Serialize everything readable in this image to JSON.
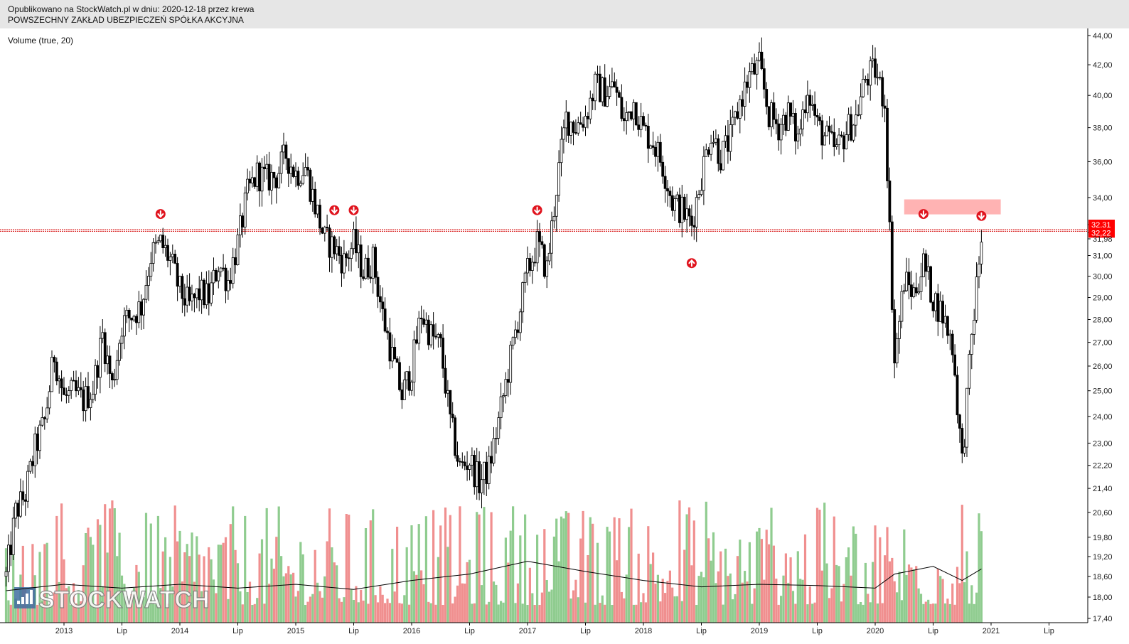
{
  "header": {
    "published": "Opublikowano na StockWatch.pl w dniu: 2020-12-18 przez krewa",
    "company": "POWSZECHNY ZAKŁAD UBEZPIECZEŃ SPÓŁKA AKCYJNA"
  },
  "indicator_label": "Volume (true, 20)",
  "watermark": "STOCKWATCH",
  "colors": {
    "up_volume": "#8fcc8f",
    "down_volume": "#f08f8f",
    "candle": "#000000",
    "resistance_line": "#d40000",
    "zone": "#ffb3b3",
    "marker": "#e0141e",
    "price_tag": "#ff0000"
  },
  "chart_data": {
    "type": "candlestick",
    "title": "",
    "ylabel": "",
    "y_axis": {
      "scale": "log",
      "range": [
        17.4,
        44.0
      ],
      "ticks": [
        "44,00",
        "42,00",
        "40,00",
        "38,00",
        "36,00",
        "34,00",
        "32,31",
        "32,22",
        "31,98",
        "31,00",
        "30,00",
        "29,00",
        "28,00",
        "27,00",
        "26,00",
        "25,00",
        "24,00",
        "23,00",
        "22,20",
        "21,40",
        "20,60",
        "19,80",
        "19,20",
        "18,60",
        "18,00",
        "17,40"
      ]
    },
    "x_axis": {
      "ticks": [
        "2013",
        "Lip",
        "2014",
        "Lip",
        "2015",
        "Lip",
        "2016",
        "Lip",
        "2017",
        "Lip",
        "2018",
        "Lip",
        "2019",
        "Lip",
        "2020",
        "Lip",
        "2021",
        "Lip"
      ]
    },
    "price_labels": [
      {
        "value": 32.31,
        "text": "32,31",
        "highlight": true
      },
      {
        "value": 32.22,
        "text": "32,22",
        "highlight": true
      },
      {
        "value": 31.98,
        "text": "31,98",
        "highlight": false
      }
    ],
    "resistance_levels": [
      32.31,
      32.22
    ],
    "zone": {
      "from_date": "2020-04",
      "to_date": "2021-02",
      "low": 33.1,
      "high": 33.9
    },
    "markers": [
      {
        "date": "2013-11",
        "price": 32.6,
        "direction": "down"
      },
      {
        "date": "2015-05",
        "price": 32.8,
        "direction": "down"
      },
      {
        "date": "2015-07",
        "price": 32.8,
        "direction": "down"
      },
      {
        "date": "2017-02",
        "price": 32.8,
        "direction": "down"
      },
      {
        "date": "2018-06",
        "price": 31.4,
        "direction": "up"
      },
      {
        "date": "2020-06",
        "price": 32.6,
        "direction": "down"
      },
      {
        "date": "2020-12",
        "price": 32.5,
        "direction": "down"
      }
    ],
    "price_series": [
      {
        "date": "2012-07",
        "close": 18.6
      },
      {
        "date": "2012-08",
        "close": 20.6
      },
      {
        "date": "2012-09",
        "close": 21.2
      },
      {
        "date": "2012-10",
        "close": 22.8
      },
      {
        "date": "2012-11",
        "close": 23.8
      },
      {
        "date": "2012-12",
        "close": 26.5
      },
      {
        "date": "2013-01",
        "close": 24.7
      },
      {
        "date": "2013-02",
        "close": 24.9
      },
      {
        "date": "2013-03",
        "close": 24.6
      },
      {
        "date": "2013-04",
        "close": 25.1
      },
      {
        "date": "2013-05",
        "close": 27.3
      },
      {
        "date": "2013-06",
        "close": 25.2
      },
      {
        "date": "2013-07",
        "close": 27.8
      },
      {
        "date": "2013-08",
        "close": 28.2
      },
      {
        "date": "2013-09",
        "close": 28.6
      },
      {
        "date": "2013-10",
        "close": 31.0
      },
      {
        "date": "2013-11",
        "close": 31.6
      },
      {
        "date": "2013-12",
        "close": 30.8
      },
      {
        "date": "2014-01",
        "close": 29.3
      },
      {
        "date": "2014-02",
        "close": 28.6
      },
      {
        "date": "2014-03",
        "close": 29.2
      },
      {
        "date": "2014-04",
        "close": 29.0
      },
      {
        "date": "2014-05",
        "close": 30.6
      },
      {
        "date": "2014-06",
        "close": 29.8
      },
      {
        "date": "2014-07",
        "close": 31.6
      },
      {
        "date": "2014-08",
        "close": 34.2
      },
      {
        "date": "2014-09",
        "close": 35.3
      },
      {
        "date": "2014-10",
        "close": 35.0
      },
      {
        "date": "2014-11",
        "close": 35.2
      },
      {
        "date": "2014-12",
        "close": 36.4
      },
      {
        "date": "2015-01",
        "close": 35.3
      },
      {
        "date": "2015-02",
        "close": 35.7
      },
      {
        "date": "2015-03",
        "close": 33.6
      },
      {
        "date": "2015-04",
        "close": 31.8
      },
      {
        "date": "2015-05",
        "close": 31.4
      },
      {
        "date": "2015-06",
        "close": 30.7
      },
      {
        "date": "2015-07",
        "close": 31.6
      },
      {
        "date": "2015-08",
        "close": 30.2
      },
      {
        "date": "2015-09",
        "close": 30.8
      },
      {
        "date": "2015-10",
        "close": 28.2
      },
      {
        "date": "2015-11",
        "close": 26.4
      },
      {
        "date": "2015-12",
        "close": 24.8
      },
      {
        "date": "2016-01",
        "close": 25.9
      },
      {
        "date": "2016-02",
        "close": 28.3
      },
      {
        "date": "2016-03",
        "close": 27.3
      },
      {
        "date": "2016-04",
        "close": 26.8
      },
      {
        "date": "2016-05",
        "close": 23.8
      },
      {
        "date": "2016-06",
        "close": 22.1
      },
      {
        "date": "2016-07",
        "close": 22.4
      },
      {
        "date": "2016-08",
        "close": 21.6
      },
      {
        "date": "2016-09",
        "close": 22.1
      },
      {
        "date": "2016-10",
        "close": 23.8
      },
      {
        "date": "2016-11",
        "close": 25.8
      },
      {
        "date": "2016-12",
        "close": 28.0
      },
      {
        "date": "2017-01",
        "close": 30.2
      },
      {
        "date": "2017-02",
        "close": 31.6
      },
      {
        "date": "2017-03",
        "close": 30.3
      },
      {
        "date": "2017-04",
        "close": 34.6
      },
      {
        "date": "2017-05",
        "close": 38.6
      },
      {
        "date": "2017-06",
        "close": 38.1
      },
      {
        "date": "2017-07",
        "close": 38.7
      },
      {
        "date": "2017-08",
        "close": 40.6
      },
      {
        "date": "2017-09",
        "close": 40.2
      },
      {
        "date": "2017-10",
        "close": 40.6
      },
      {
        "date": "2017-11",
        "close": 38.3
      },
      {
        "date": "2017-12",
        "close": 39.6
      },
      {
        "date": "2018-01",
        "close": 37.8
      },
      {
        "date": "2018-02",
        "close": 37.2
      },
      {
        "date": "2018-03",
        "close": 35.8
      },
      {
        "date": "2018-04",
        "close": 33.8
      },
      {
        "date": "2018-05",
        "close": 33.3
      },
      {
        "date": "2018-06",
        "close": 32.6
      },
      {
        "date": "2018-07",
        "close": 35.2
      },
      {
        "date": "2018-08",
        "close": 37.8
      },
      {
        "date": "2018-09",
        "close": 36.3
      },
      {
        "date": "2018-10",
        "close": 37.3
      },
      {
        "date": "2018-11",
        "close": 39.6
      },
      {
        "date": "2018-12",
        "close": 41.3
      },
      {
        "date": "2019-01",
        "close": 41.9
      },
      {
        "date": "2019-02",
        "close": 38.8
      },
      {
        "date": "2019-03",
        "close": 38.1
      },
      {
        "date": "2019-04",
        "close": 38.9
      },
      {
        "date": "2019-05",
        "close": 37.3
      },
      {
        "date": "2019-06",
        "close": 40.6
      },
      {
        "date": "2019-07",
        "close": 38.1
      },
      {
        "date": "2019-08",
        "close": 37.3
      },
      {
        "date": "2019-09",
        "close": 36.6
      },
      {
        "date": "2019-10",
        "close": 37.8
      },
      {
        "date": "2019-11",
        "close": 38.6
      },
      {
        "date": "2019-12",
        "close": 41.1
      },
      {
        "date": "2020-01",
        "close": 41.6
      },
      {
        "date": "2020-02",
        "close": 39.6
      },
      {
        "date": "2020-03",
        "close": 26.2
      },
      {
        "date": "2020-04",
        "close": 29.8
      },
      {
        "date": "2020-05",
        "close": 29.2
      },
      {
        "date": "2020-06",
        "close": 30.6
      },
      {
        "date": "2020-07",
        "close": 29.0
      },
      {
        "date": "2020-08",
        "close": 28.2
      },
      {
        "date": "2020-09",
        "close": 26.9
      },
      {
        "date": "2020-10",
        "close": 22.3
      },
      {
        "date": "2020-11",
        "close": 27.2
      },
      {
        "date": "2020-12",
        "close": 31.98
      }
    ],
    "volume_average_series": [
      {
        "date": "2012-07",
        "level": 0.25
      },
      {
        "date": "2013-01",
        "level": 0.3
      },
      {
        "date": "2013-07",
        "level": 0.27
      },
      {
        "date": "2014-01",
        "level": 0.3
      },
      {
        "date": "2014-07",
        "level": 0.27
      },
      {
        "date": "2015-01",
        "level": 0.3
      },
      {
        "date": "2015-07",
        "level": 0.26
      },
      {
        "date": "2016-01",
        "level": 0.33
      },
      {
        "date": "2016-07",
        "level": 0.38
      },
      {
        "date": "2017-01",
        "level": 0.48
      },
      {
        "date": "2017-07",
        "level": 0.4
      },
      {
        "date": "2018-01",
        "level": 0.33
      },
      {
        "date": "2018-07",
        "level": 0.28
      },
      {
        "date": "2019-01",
        "level": 0.3
      },
      {
        "date": "2019-07",
        "level": 0.29
      },
      {
        "date": "2020-01",
        "level": 0.27
      },
      {
        "date": "2020-03",
        "level": 0.38
      },
      {
        "date": "2020-07",
        "level": 0.44
      },
      {
        "date": "2020-10",
        "level": 0.33
      },
      {
        "date": "2020-12",
        "level": 0.42
      }
    ]
  }
}
